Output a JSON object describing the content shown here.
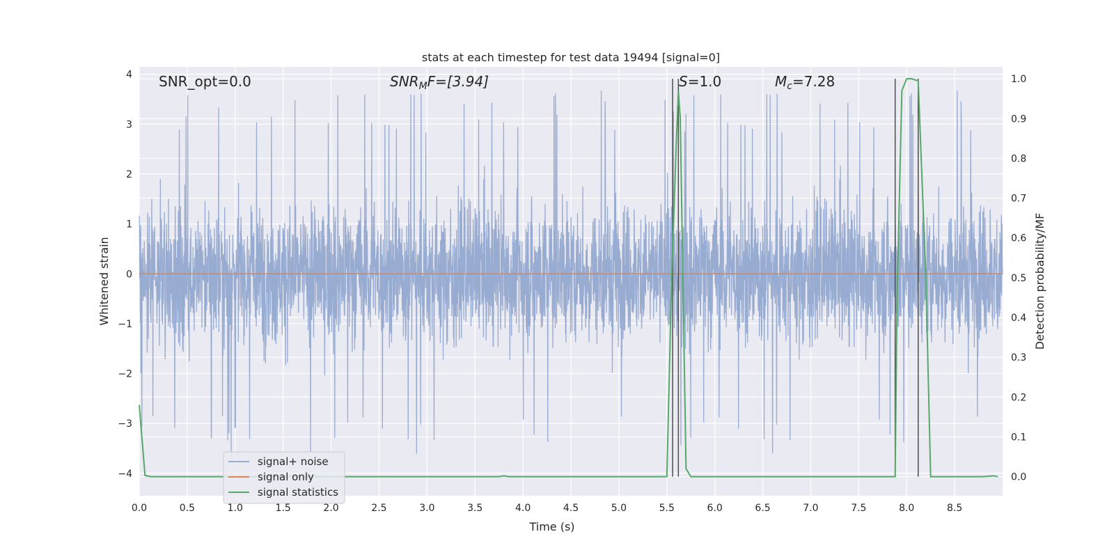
{
  "chart_data": {
    "type": "line",
    "title": "stats at each timestep for test data 19494 [signal=0]",
    "xlabel": "Time (s)",
    "ylabel_left": "Whitened strain",
    "ylabel_right": "Detection probability/MF",
    "xlim": [
      0.0,
      9.0
    ],
    "ylim_left": [
      -4.45,
      4.15
    ],
    "ylim_right": [
      -0.048,
      1.03
    ],
    "xticks": [
      0.0,
      0.5,
      1.0,
      1.5,
      2.0,
      2.5,
      3.0,
      3.5,
      4.0,
      4.5,
      5.0,
      5.5,
      6.0,
      6.5,
      7.0,
      7.5,
      8.0,
      8.5
    ],
    "xtick_labels": [
      "0.0",
      "0.5",
      "1.0",
      "1.5",
      "2.0",
      "2.5",
      "3.0",
      "3.5",
      "4.0",
      "4.5",
      "5.0",
      "5.5",
      "6.0",
      "6.5",
      "7.0",
      "7.5",
      "8.0",
      "8.5"
    ],
    "yticks_left": [
      -4,
      -3,
      -2,
      -1,
      0,
      1,
      2,
      3,
      4
    ],
    "yticks_left_labels": [
      "−4",
      "−3",
      "−2",
      "−1",
      "0",
      "1",
      "2",
      "3",
      "4"
    ],
    "yticks_right": [
      0.0,
      0.1,
      0.2,
      0.3,
      0.4,
      0.5,
      0.6,
      0.7,
      0.8,
      0.9,
      1.0
    ],
    "yticks_right_labels": [
      "0.0",
      "0.1",
      "0.2",
      "0.3",
      "0.4",
      "0.5",
      "0.6",
      "0.7",
      "0.8",
      "0.9",
      "1.0"
    ],
    "grid": true,
    "legend_position": "lower-left",
    "annotations": {
      "snr_opt": "SNR_opt=0.0",
      "snr_mf_prefix": "SNR",
      "snr_mf_sub": "M",
      "snr_mf_suffix": "F=[3.94]",
      "s_prefix": "S",
      "s_suffix": "=1.0",
      "mc_prefix": "M",
      "mc_sub": "c",
      "mc_suffix": "=7.28"
    },
    "series": [
      {
        "name": "signal+ noise",
        "color": "#98abd1",
        "axis": "left",
        "kind": "noise",
        "duration_s": 9.0,
        "typical_range": [
          -2.0,
          2.0
        ],
        "peak_range": [
          -3.7,
          3.75
        ]
      },
      {
        "name": "signal only",
        "color": "#dd8452",
        "axis": "left",
        "x": [
          0.0,
          9.0
        ],
        "y": [
          0.0,
          0.0
        ]
      },
      {
        "name": "signal statistics",
        "color": "#55a868",
        "axis": "right",
        "x": [
          0.0,
          0.06,
          0.12,
          0.5,
          1.0,
          2.0,
          3.0,
          3.75,
          3.8,
          3.85,
          4.0,
          5.0,
          5.5,
          5.55,
          5.6,
          5.62,
          5.64,
          5.7,
          5.75,
          6.0,
          7.0,
          7.8,
          7.88,
          7.9,
          7.95,
          8.0,
          8.05,
          8.12,
          8.2,
          8.25,
          8.3,
          8.5,
          8.8,
          8.9,
          8.95
        ],
        "y": [
          0.18,
          0.003,
          0.0,
          0.0,
          0.0,
          0.0,
          0.0,
          0.0,
          0.002,
          0.0,
          0.0,
          0.0,
          0.0,
          0.5,
          0.85,
          0.97,
          0.9,
          0.02,
          0.0,
          0.0,
          0.0,
          0.0,
          0.0,
          0.45,
          0.97,
          1.0,
          1.0,
          0.995,
          0.5,
          0.0,
          0.0,
          0.0,
          0.0,
          0.002,
          0.0
        ]
      }
    ],
    "vertical_markers": {
      "color": "#4d4d4d",
      "x": [
        5.56,
        5.62,
        7.88,
        8.12
      ],
      "y_top": 1.0,
      "y_bottom": 0.0
    }
  }
}
